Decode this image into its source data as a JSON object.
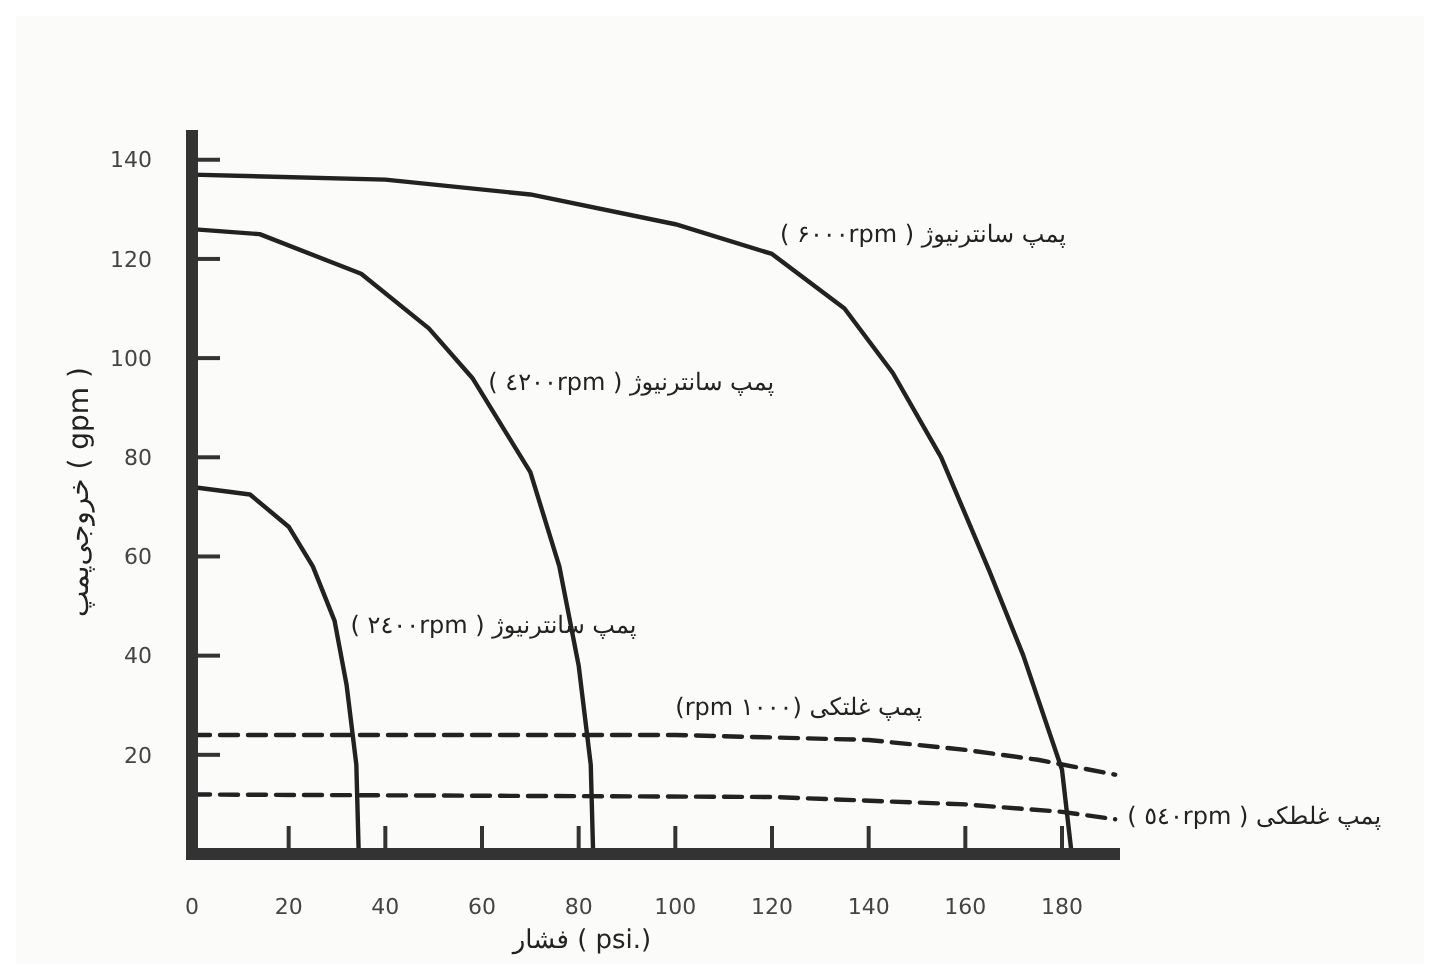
{
  "chart_data": {
    "type": "line",
    "xlabel": "فشار ( psi.)",
    "ylabel": "خروجی‌پمپ ( gpm )",
    "xlim": [
      0,
      192
    ],
    "ylim": [
      0,
      146
    ],
    "xticks": [
      0,
      20,
      40,
      60,
      80,
      100,
      120,
      140,
      160,
      180
    ],
    "yticks": [
      20,
      40,
      60,
      80,
      100,
      120,
      140
    ],
    "grid": false,
    "marker": "none",
    "series": [
      {
        "name": "پمپ سانترنیوژ ( ۶۰۰۰rpm )",
        "color": "#222222",
        "line_style": "solid",
        "x": [
          0,
          40,
          70,
          100,
          120,
          135,
          145,
          155,
          165,
          172,
          180,
          182
        ],
        "values": [
          137,
          136,
          133,
          127,
          121,
          110,
          97,
          80,
          57,
          40,
          17,
          0
        ]
      },
      {
        "name": "پمپ سانترنیوژ ( ٤٢٠٠rpm )",
        "color": "#222222",
        "line_style": "solid",
        "x": [
          0,
          14,
          35,
          49,
          58,
          70,
          76,
          80,
          82.5,
          83
        ],
        "values": [
          126,
          125,
          117,
          106,
          96,
          77,
          58,
          38,
          18,
          0
        ]
      },
      {
        "name": "پمپ سانترنیوژ ( ٢٤٠٠rpm )",
        "color": "#222222",
        "line_style": "solid",
        "x": [
          0,
          12,
          20,
          25,
          29.5,
          32,
          34,
          34.5
        ],
        "values": [
          74,
          72.5,
          66,
          58,
          47,
          34,
          18,
          0
        ]
      },
      {
        "name": "پمپ غلتکی (۱۰۰۰ rpm)",
        "color": "#222222",
        "line_style": "dashed",
        "x": [
          0,
          100,
          140,
          160,
          175,
          191
        ],
        "values": [
          24,
          24,
          23,
          21,
          19,
          16
        ]
      },
      {
        "name": "پمپ غلطکی ( ٥٤٠rpm )",
        "color": "#222222",
        "line_style": "dashed",
        "x": [
          0,
          120,
          160,
          180,
          191
        ],
        "values": [
          12,
          11.5,
          10,
          8.5,
          7
        ]
      }
    ]
  }
}
